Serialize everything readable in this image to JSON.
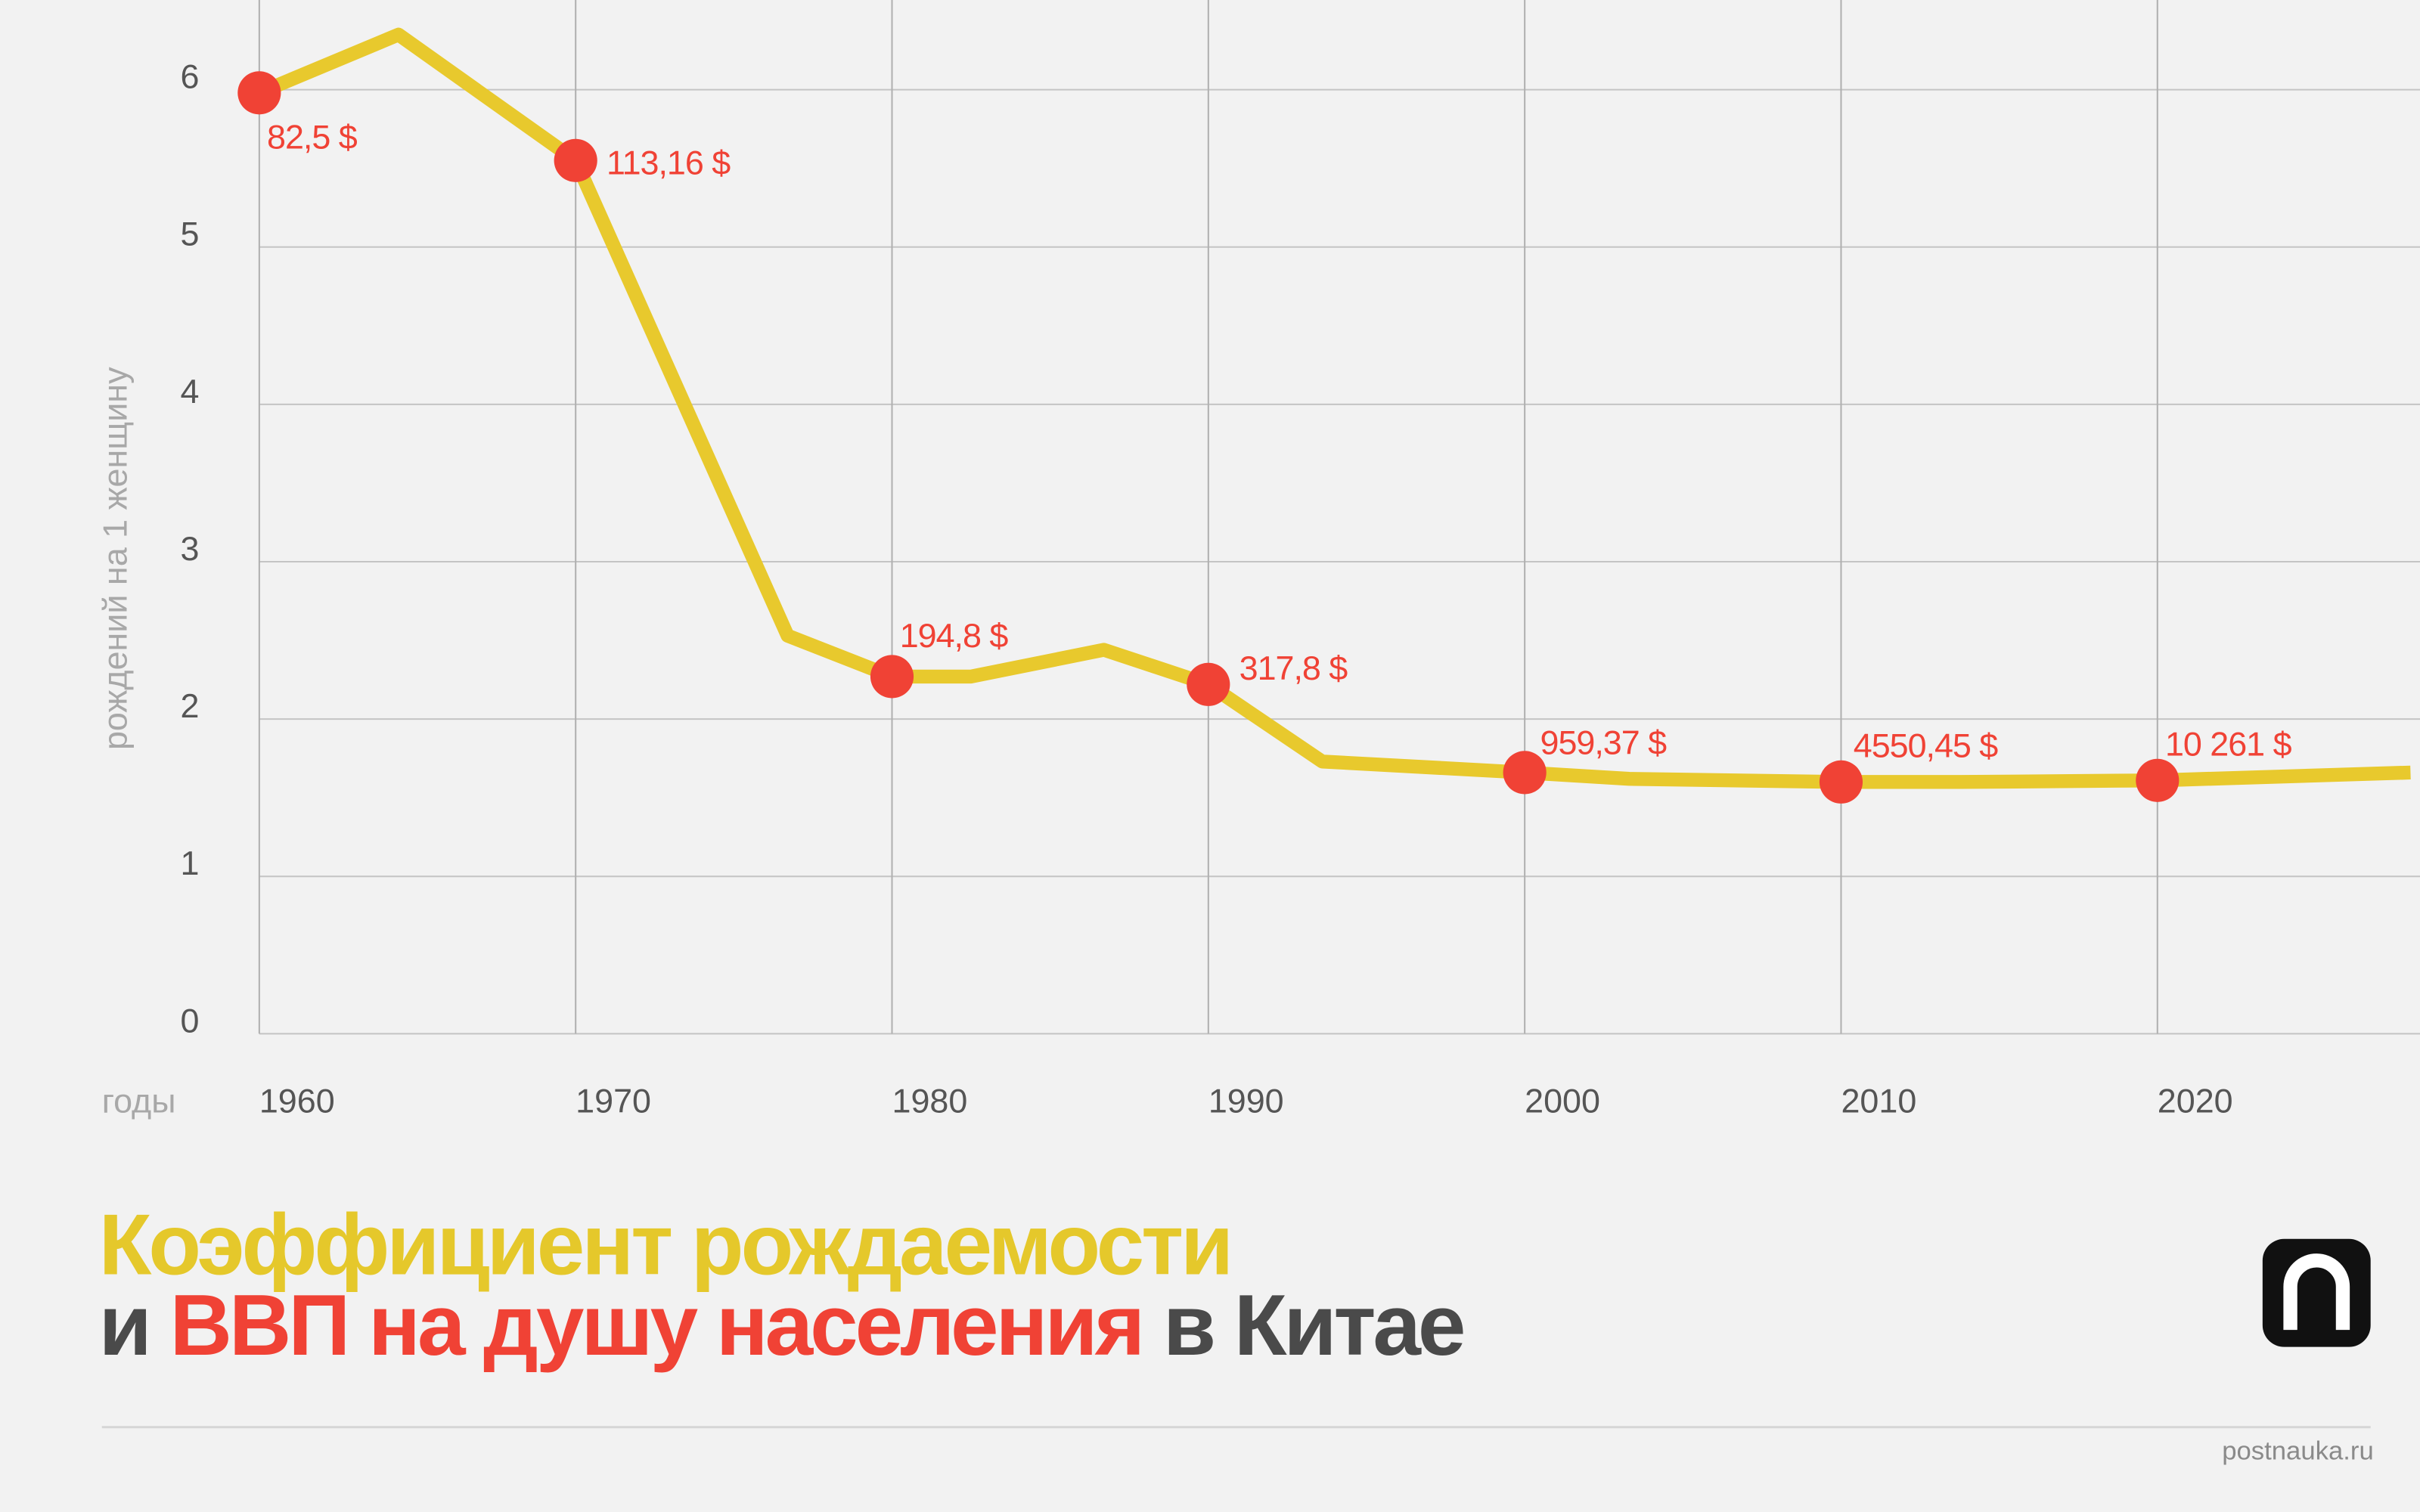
{
  "chart_data": {
    "type": "line",
    "title_lines": [
      [
        {
          "text": "Коэффициент рождаемости",
          "color": "#e5c82b"
        }
      ],
      [
        {
          "text": "и ",
          "color": "#4a4a4a"
        },
        {
          "text": "ВВП на душу населения",
          "color": "#f04235"
        },
        {
          "text": " в Китае",
          "color": "#4a4a4a"
        }
      ]
    ],
    "ylabel": "рождений на 1 женщину",
    "xlabel": "годы",
    "source": "postnauka.ru",
    "x": [
      1960,
      1964.4,
      1970,
      1976.7,
      1980,
      1982.5,
      1986.7,
      1990,
      1993.6,
      2000,
      2003.3,
      2010,
      2013.8,
      2020,
      2028
    ],
    "values": [
      5.98,
      6.35,
      5.55,
      2.53,
      2.27,
      2.27,
      2.44,
      2.22,
      1.73,
      1.66,
      1.62,
      1.6,
      1.6,
      1.61,
      1.66
    ],
    "color": "#e8c92d",
    "points": {
      "color": "#f04235",
      "x": [
        1960,
        1970,
        1980,
        1990,
        2000,
        2010,
        2020
      ],
      "values": [
        5.98,
        5.55,
        2.27,
        2.22,
        1.66,
        1.6,
        1.61
      ],
      "gdp_values": [
        82.5,
        113.16,
        194.8,
        317.8,
        959.37,
        4550.45,
        10261
      ],
      "gdp_labels": [
        "82,5 $",
        "113,16 $",
        "194,8 $",
        "317,8 $",
        "959,37 $",
        "4550,45 $",
        "10 261 $"
      ]
    },
    "xlim": [
      1960,
      2028.3
    ],
    "ylim": [
      0,
      6.57
    ],
    "xticks": [
      1960,
      1970,
      1980,
      1990,
      2000,
      2010,
      2020
    ],
    "yticks": [
      0,
      1,
      2,
      3,
      4,
      5,
      6
    ],
    "grid": true
  }
}
